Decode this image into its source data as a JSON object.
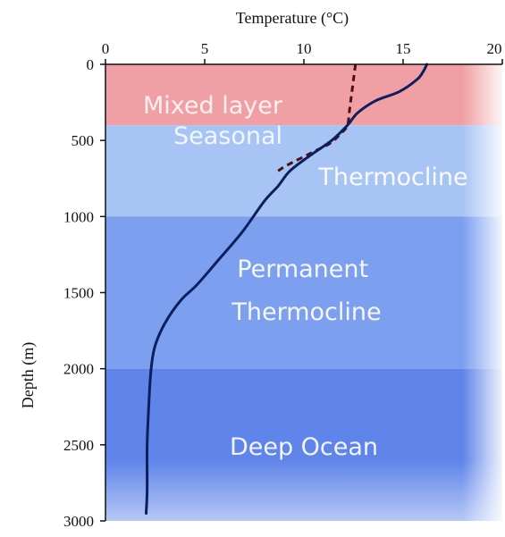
{
  "chart_data": {
    "type": "line",
    "xlabel": "Temperature (°C)",
    "ylabel": "Depth (m)",
    "xlim": [
      0,
      20
    ],
    "ylim": [
      0,
      3000
    ],
    "y_inverted": true,
    "x_axis_position": "top",
    "x_ticks": [
      0,
      5,
      10,
      15,
      20
    ],
    "y_ticks": [
      0,
      500,
      1000,
      1500,
      2000,
      2500,
      3000
    ],
    "x_tick_labels": [
      "0",
      "5",
      "10",
      "15",
      "20"
    ],
    "y_tick_labels": [
      "0",
      "500",
      "1000",
      "1500",
      "2000",
      "2500",
      "3000"
    ],
    "grid": false,
    "legend": "none",
    "series": [
      {
        "style": "solid",
        "color": "#0b1f5e",
        "x": [
          16.2,
          16.0,
          15.7,
          14.8,
          13.6,
          12.7,
          12.2,
          11.4,
          10.3,
          9.3,
          8.7,
          8.0,
          6.9,
          5.6,
          4.6,
          3.8,
          3.0,
          2.5,
          2.3,
          2.2,
          2.1,
          2.1,
          2.05
        ],
        "y": [
          0,
          50,
          100,
          180,
          240,
          320,
          400,
          500,
          600,
          700,
          800,
          900,
          1100,
          1300,
          1450,
          1550,
          1700,
          1850,
          2000,
          2200,
          2500,
          2800,
          2950
        ]
      },
      {
        "style": "dashed",
        "color": "#4a1212",
        "x": [
          12.6,
          12.5,
          12.4,
          12.3,
          12.2,
          11.9,
          11.3,
          10.4,
          9.2,
          8.7
        ],
        "y": [
          0,
          100,
          200,
          300,
          400,
          450,
          520,
          580,
          660,
          700
        ]
      }
    ],
    "zones": [
      {
        "label": "Mixed layer",
        "top": 0,
        "bottom": 400,
        "color": "#f0a0a4"
      },
      {
        "label": "Seasonal",
        "top": 400,
        "bottom": 1000,
        "color": "#a8c4f4"
      },
      {
        "label": "Thermocline",
        "top": 400,
        "bottom": 1000,
        "color": "#a8c4f4"
      },
      {
        "label": "Permanent Thermocline",
        "top": 1000,
        "bottom": 2000,
        "color": "#7c9ff0"
      },
      {
        "label": "Deep Ocean",
        "top": 2000,
        "bottom": 3000,
        "color": "#5f84ea"
      }
    ]
  }
}
